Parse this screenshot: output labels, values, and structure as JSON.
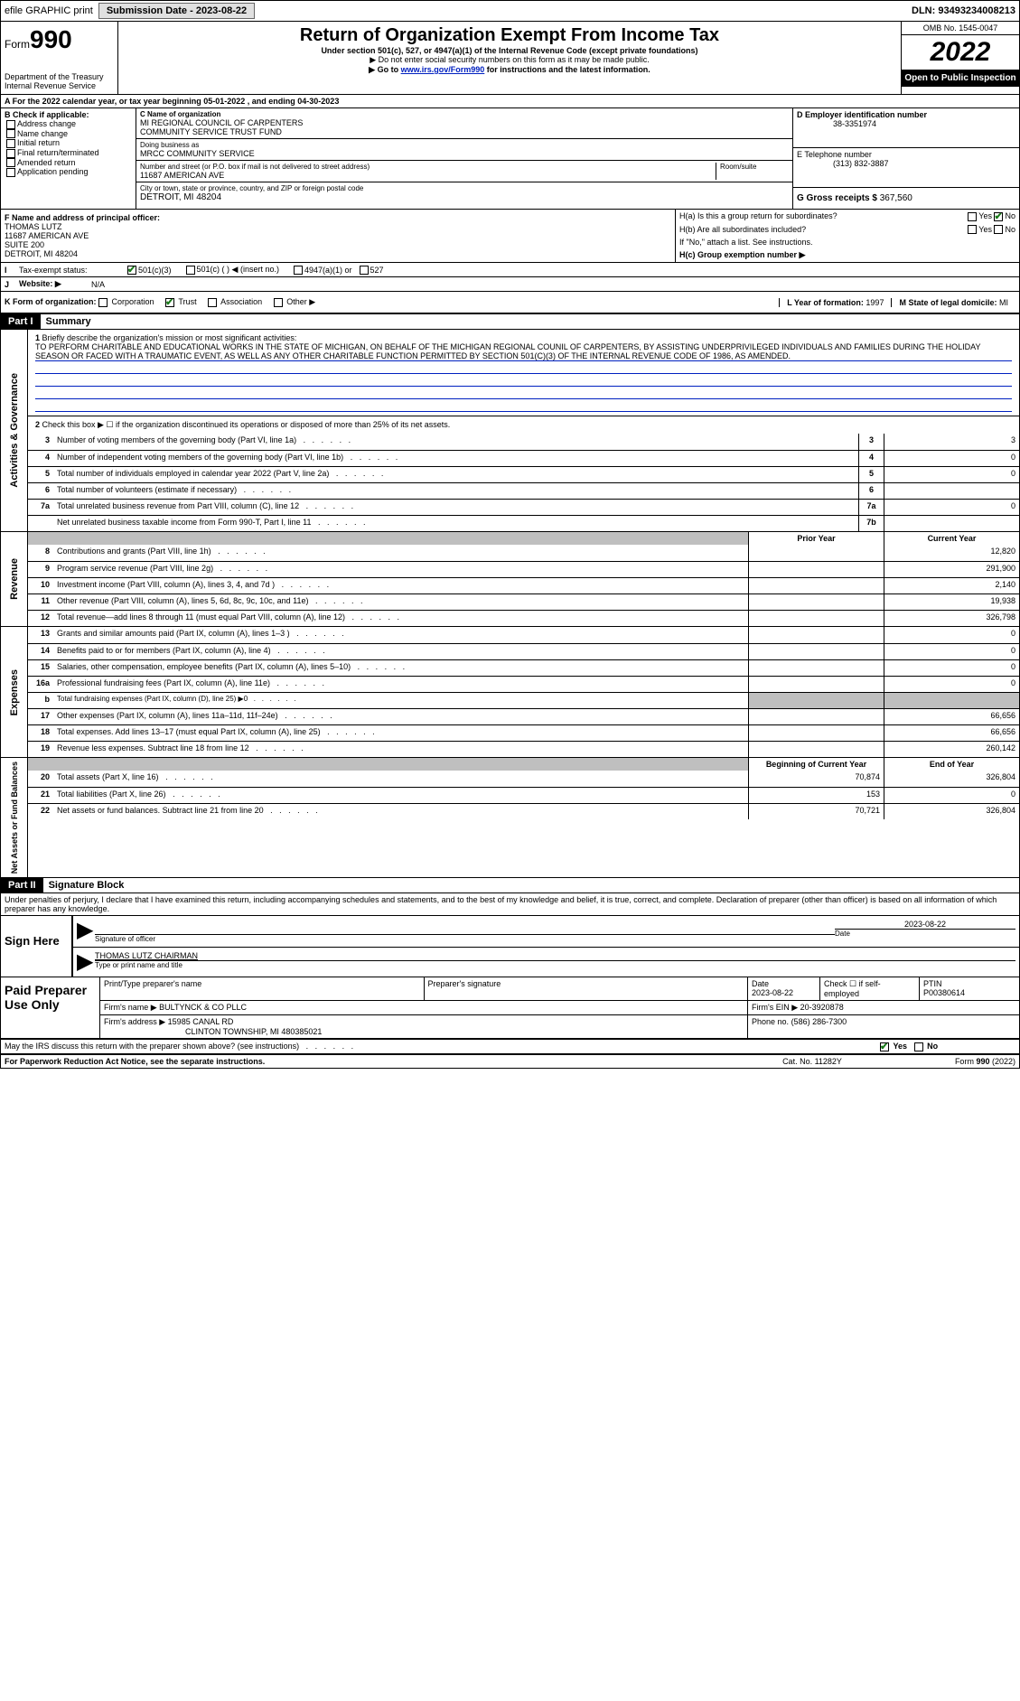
{
  "top": {
    "efile": "efile GRAPHIC print",
    "submission_label": "Submission Date - 2023-08-22",
    "dln": "DLN: 93493234008213"
  },
  "header": {
    "form_label": "Form",
    "form_num": "990",
    "dept": "Department of the Treasury",
    "irs": "Internal Revenue Service",
    "title": "Return of Organization Exempt From Income Tax",
    "sub1": "Under section 501(c), 527, or 4947(a)(1) of the Internal Revenue Code (except private foundations)",
    "sub2": "▶ Do not enter social security numbers on this form as it may be made public.",
    "sub3_pre": "▶ Go to ",
    "sub3_link": "www.irs.gov/Form990",
    "sub3_post": " for instructions and the latest information.",
    "omb": "OMB No. 1545-0047",
    "year": "2022",
    "open": "Open to Public Inspection"
  },
  "row_a": "A For the 2022 calendar year, or tax year beginning 05-01-2022   , and ending 04-30-2023",
  "col_b": {
    "hdr": "B Check if applicable:",
    "items": [
      "Address change",
      "Name change",
      "Initial return",
      "Final return/terminated",
      "Amended return",
      "Application pending"
    ]
  },
  "col_c": {
    "name_label": "C Name of organization",
    "name1": "MI REGIONAL COUNCIL OF CARPENTERS",
    "name2": "COMMUNITY SERVICE TRUST FUND",
    "dba_label": "Doing business as",
    "dba": "MRCC COMMUNITY SERVICE",
    "addr_label": "Number and street (or P.O. box if mail is not delivered to street address)",
    "addr": "11687 AMERICAN AVE",
    "room_label": "Room/suite",
    "city_label": "City or town, state or province, country, and ZIP or foreign postal code",
    "city": "DETROIT, MI  48204"
  },
  "col_d": {
    "ein_label": "D Employer identification number",
    "ein": "38-3351974",
    "tel_label": "E Telephone number",
    "tel": "(313) 832-3887",
    "gross_label": "G Gross receipts $",
    "gross": "367,560"
  },
  "fgh": {
    "f_label": "F  Name and address of principal officer:",
    "f_name": "THOMAS LUTZ",
    "f_addr1": "11687 AMERICAN AVE",
    "f_addr2": "SUITE 200",
    "f_addr3": "DETROIT, MI  48204",
    "ha": "H(a)  Is this a group return for subordinates?",
    "hb": "H(b)  Are all subordinates included?",
    "hb_note": "If \"No,\" attach a list. See instructions.",
    "hc": "H(c)  Group exemption number ▶",
    "yes": "Yes",
    "no": "No"
  },
  "i_row": {
    "label": "Tax-exempt status:",
    "opt1": "501(c)(3)",
    "opt2": "501(c) (   ) ◀ (insert no.)",
    "opt3": "4947(a)(1) or",
    "opt4": "527"
  },
  "j_row": {
    "label": "Website: ▶",
    "val": "N/A"
  },
  "k_row": {
    "label": "K Form of organization:",
    "opts": [
      "Corporation",
      "Trust",
      "Association",
      "Other ▶"
    ],
    "l_label": "L Year of formation:",
    "l_val": "1997",
    "m_label": "M State of legal domicile:",
    "m_val": "MI"
  },
  "part1": {
    "hdr": "Part I",
    "title": "Summary",
    "vert_gov": "Activities & Governance",
    "vert_rev": "Revenue",
    "vert_exp": "Expenses",
    "vert_net": "Net Assets or Fund Balances",
    "mission_label": "Briefly describe the organization's mission or most significant activities:",
    "mission": "TO PERFORM CHARITABLE AND EDUCATIONAL WORKS IN THE STATE OF MICHIGAN, ON BEHALF OF THE MICHIGAN REGIONAL COUNIL OF CARPENTERS, BY ASSISTING UNDERPRIVILEGED INDIVIDUALS AND FAMILIES DURING THE HOLIDAY SEASON OR FACED WITH A TRAUMATIC EVENT, AS WELL AS ANY OTHER CHARITABLE FUNCTION PERMITTED BY SECTION 501(C)(3) OF THE INTERNAL REVENUE CODE OF 1986, AS AMENDED.",
    "l2": "Check this box ▶ ☐ if the organization discontinued its operations or disposed of more than 25% of its net assets.",
    "lines_gov": [
      {
        "n": "3",
        "t": "Number of voting members of the governing body (Part VI, line 1a)",
        "box": "3",
        "v": "3"
      },
      {
        "n": "4",
        "t": "Number of independent voting members of the governing body (Part VI, line 1b)",
        "box": "4",
        "v": "0"
      },
      {
        "n": "5",
        "t": "Total number of individuals employed in calendar year 2022 (Part V, line 2a)",
        "box": "5",
        "v": "0"
      },
      {
        "n": "6",
        "t": "Total number of volunteers (estimate if necessary)",
        "box": "6",
        "v": ""
      },
      {
        "n": "7a",
        "t": "Total unrelated business revenue from Part VIII, column (C), line 12",
        "box": "7a",
        "v": "0"
      },
      {
        "n": "",
        "t": "Net unrelated business taxable income from Form 990-T, Part I, line 11",
        "box": "7b",
        "v": ""
      }
    ],
    "prior_label": "Prior Year",
    "curr_label": "Current Year",
    "lines_rev": [
      {
        "n": "8",
        "t": "Contributions and grants (Part VIII, line 1h)",
        "p": "",
        "c": "12,820"
      },
      {
        "n": "9",
        "t": "Program service revenue (Part VIII, line 2g)",
        "p": "",
        "c": "291,900"
      },
      {
        "n": "10",
        "t": "Investment income (Part VIII, column (A), lines 3, 4, and 7d )",
        "p": "",
        "c": "2,140"
      },
      {
        "n": "11",
        "t": "Other revenue (Part VIII, column (A), lines 5, 6d, 8c, 9c, 10c, and 11e)",
        "p": "",
        "c": "19,938"
      },
      {
        "n": "12",
        "t": "Total revenue—add lines 8 through 11 (must equal Part VIII, column (A), line 12)",
        "p": "",
        "c": "326,798"
      }
    ],
    "lines_exp": [
      {
        "n": "13",
        "t": "Grants and similar amounts paid (Part IX, column (A), lines 1–3 )",
        "p": "",
        "c": "0"
      },
      {
        "n": "14",
        "t": "Benefits paid to or for members (Part IX, column (A), line 4)",
        "p": "",
        "c": "0"
      },
      {
        "n": "15",
        "t": "Salaries, other compensation, employee benefits (Part IX, column (A), lines 5–10)",
        "p": "",
        "c": "0"
      },
      {
        "n": "16a",
        "t": "Professional fundraising fees (Part IX, column (A), line 11e)",
        "p": "",
        "c": "0"
      },
      {
        "n": "b",
        "t": "Total fundraising expenses (Part IX, column (D), line 25) ▶0",
        "p": "grey",
        "c": "grey"
      },
      {
        "n": "17",
        "t": "Other expenses (Part IX, column (A), lines 11a–11d, 11f–24e)",
        "p": "",
        "c": "66,656"
      },
      {
        "n": "18",
        "t": "Total expenses. Add lines 13–17 (must equal Part IX, column (A), line 25)",
        "p": "",
        "c": "66,656"
      },
      {
        "n": "19",
        "t": "Revenue less expenses. Subtract line 18 from line 12",
        "p": "",
        "c": "260,142"
      }
    ],
    "beg_label": "Beginning of Current Year",
    "end_label": "End of Year",
    "lines_net": [
      {
        "n": "20",
        "t": "Total assets (Part X, line 16)",
        "p": "70,874",
        "c": "326,804"
      },
      {
        "n": "21",
        "t": "Total liabilities (Part X, line 26)",
        "p": "153",
        "c": "0"
      },
      {
        "n": "22",
        "t": "Net assets or fund balances. Subtract line 21 from line 20",
        "p": "70,721",
        "c": "326,804"
      }
    ]
  },
  "part2": {
    "hdr": "Part II",
    "title": "Signature Block",
    "decl": "Under penalties of perjury, I declare that I have examined this return, including accompanying schedules and statements, and to the best of my knowledge and belief, it is true, correct, and complete. Declaration of preparer (other than officer) is based on all information of which preparer has any knowledge.",
    "sign_here": "Sign Here",
    "sig_officer_label": "Signature of officer",
    "sig_date": "2023-08-22",
    "date_label": "Date",
    "officer_name": "THOMAS LUTZ  CHAIRMAN",
    "officer_name_label": "Type or print name and title",
    "paid": "Paid Preparer Use Only",
    "prep_name_label": "Print/Type preparer's name",
    "prep_sig_label": "Preparer's signature",
    "prep_date": "2023-08-22",
    "self_emp": "Check ☐ if self-employed",
    "ptin_label": "PTIN",
    "ptin": "P00380614",
    "firm_name_label": "Firm's name    ▶",
    "firm_name": "BULTYNCK & CO PLLC",
    "firm_ein_label": "Firm's EIN ▶",
    "firm_ein": "20-3920878",
    "firm_addr_label": "Firm's address ▶",
    "firm_addr1": "15985 CANAL RD",
    "firm_addr2": "CLINTON TOWNSHIP, MI  480385021",
    "firm_phone_label": "Phone no.",
    "firm_phone": "(586) 286-7300",
    "may_irs": "May the IRS discuss this return with the preparer shown above? (see instructions)",
    "paperwork": "For Paperwork Reduction Act Notice, see the separate instructions.",
    "cat": "Cat. No. 11282Y",
    "form_foot": "Form 990 (2022)"
  }
}
